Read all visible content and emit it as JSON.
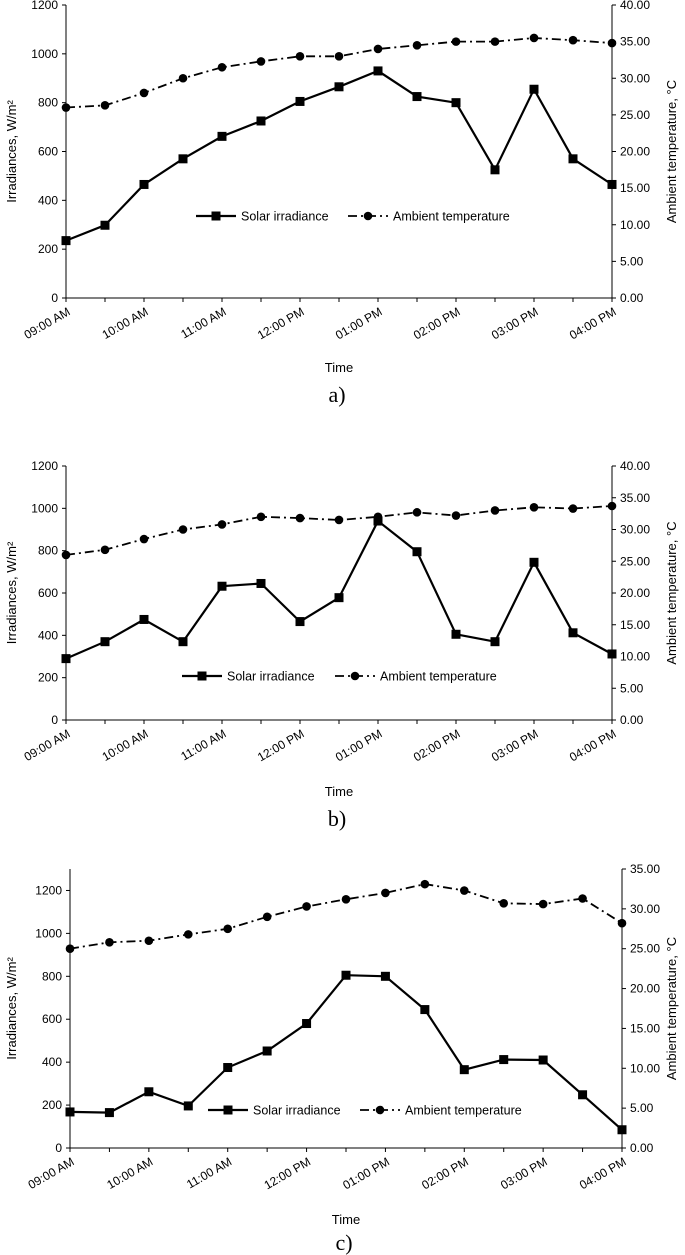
{
  "chart_data": [
    {
      "type": "line",
      "panel_label": "a)",
      "categories": [
        "09:00 AM",
        "09:30 AM",
        "10:00 AM",
        "10:30 AM",
        "11:00 AM",
        "11:30 AM",
        "12:00 PM",
        "12:30 PM",
        "01:00 PM",
        "01:30 PM",
        "02:00 PM",
        "02:30 PM",
        "03:00 PM",
        "03:30 PM",
        "04:00 PM"
      ],
      "tick_labels": [
        "09:00 AM",
        "10:00 AM",
        "11:00 AM",
        "12:00 PM",
        "01:00 PM",
        "02:00 PM",
        "03:00 PM",
        "04:00 PM"
      ],
      "xlabel": "Time",
      "ylabel": "Irradiances, W/m²",
      "y2label": "Ambient temperature, °C",
      "ylim": [
        0,
        1200
      ],
      "yticks": [
        "0",
        "200",
        "400",
        "600",
        "800",
        "1000",
        "1200"
      ],
      "y2lim": [
        0,
        40
      ],
      "y2ticks": [
        "0.00",
        "5.00",
        "10.00",
        "15.00",
        "20.00",
        "25.00",
        "30.00",
        "35.00",
        "40.00"
      ],
      "series": [
        {
          "name": "Solar irradiance",
          "axis": "left",
          "values": [
            235,
            298,
            465,
            570,
            662,
            725,
            805,
            865,
            930,
            825,
            800,
            525,
            855,
            570,
            465
          ]
        },
        {
          "name": "Ambient temperature",
          "axis": "right",
          "values": [
            26.0,
            26.3,
            28.0,
            30.0,
            31.5,
            32.3,
            33.0,
            33.0,
            34.0,
            34.5,
            35.0,
            35.0,
            35.5,
            35.2,
            34.8
          ]
        }
      ]
    },
    {
      "type": "line",
      "panel_label": "b)",
      "categories": [
        "09:00 AM",
        "09:30 AM",
        "10:00 AM",
        "10:30 AM",
        "11:00 AM",
        "11:30 AM",
        "12:00 PM",
        "12:30 PM",
        "01:00 PM",
        "01:30 PM",
        "02:00 PM",
        "02:30 PM",
        "03:00 PM",
        "03:30 PM",
        "04:00 PM"
      ],
      "tick_labels": [
        "09:00 AM",
        "10:00 AM",
        "11:00 AM",
        "12:00 PM",
        "01:00 PM",
        "02:00 PM",
        "03:00 PM",
        "04:00 PM"
      ],
      "xlabel": "Time",
      "ylabel": "Irradiances, W/m²",
      "y2label": "Ambient temperature, °C",
      "ylim": [
        0,
        1200
      ],
      "yticks": [
        "0",
        "200",
        "400",
        "600",
        "800",
        "1000",
        "1200"
      ],
      "y2lim": [
        0,
        40
      ],
      "y2ticks": [
        "0.00",
        "5.00",
        "10.00",
        "15.00",
        "20.00",
        "25.00",
        "30.00",
        "35.00",
        "40.00"
      ],
      "series": [
        {
          "name": "Solar irradiance",
          "axis": "left",
          "values": [
            290,
            370,
            475,
            370,
            632,
            645,
            465,
            578,
            940,
            795,
            405,
            370,
            745,
            412,
            312
          ]
        },
        {
          "name": "Ambient temperature",
          "axis": "right",
          "values": [
            26.0,
            26.8,
            28.5,
            30.0,
            30.8,
            32.0,
            31.8,
            31.5,
            32.0,
            32.7,
            32.2,
            33.0,
            33.5,
            33.3,
            33.7
          ]
        }
      ]
    },
    {
      "type": "line",
      "panel_label": "c)",
      "categories": [
        "09:00 AM",
        "09:30 AM",
        "10:00 AM",
        "10:30 AM",
        "11:00 AM",
        "11:30 AM",
        "12:00 PM",
        "12:30 PM",
        "01:00 PM",
        "01:30 PM",
        "02:00 PM",
        "02:30 PM",
        "03:00 PM",
        "03:30 PM",
        "04:00 PM"
      ],
      "tick_labels": [
        "09:00 AM",
        "10:00 AM",
        "11:00 AM",
        "12:00 PM",
        "01:00 PM",
        "02:00 PM",
        "03:00 PM",
        "04:00 PM"
      ],
      "xlabel": "Time",
      "ylabel": "Irradiances, W/m²",
      "y2label": "Ambient temperature, °C",
      "ylim": [
        0,
        1300
      ],
      "yticks": [
        "0",
        "200",
        "400",
        "600",
        "800",
        "1000",
        "1200"
      ],
      "y2lim": [
        0,
        35
      ],
      "y2ticks": [
        "0.00",
        "5.00",
        "10.00",
        "15.00",
        "20.00",
        "25.00",
        "30.00",
        "35.00"
      ],
      "series": [
        {
          "name": "Solar irradiance",
          "axis": "left",
          "values": [
            168,
            165,
            262,
            196,
            375,
            452,
            580,
            805,
            800,
            645,
            365,
            412,
            410,
            248,
            85
          ]
        },
        {
          "name": "Ambient temperature",
          "axis": "right",
          "values": [
            25.0,
            25.8,
            26.0,
            26.8,
            27.5,
            29.0,
            30.3,
            31.2,
            32.0,
            33.1,
            32.3,
            30.7,
            30.6,
            31.3,
            28.2
          ]
        }
      ]
    }
  ]
}
